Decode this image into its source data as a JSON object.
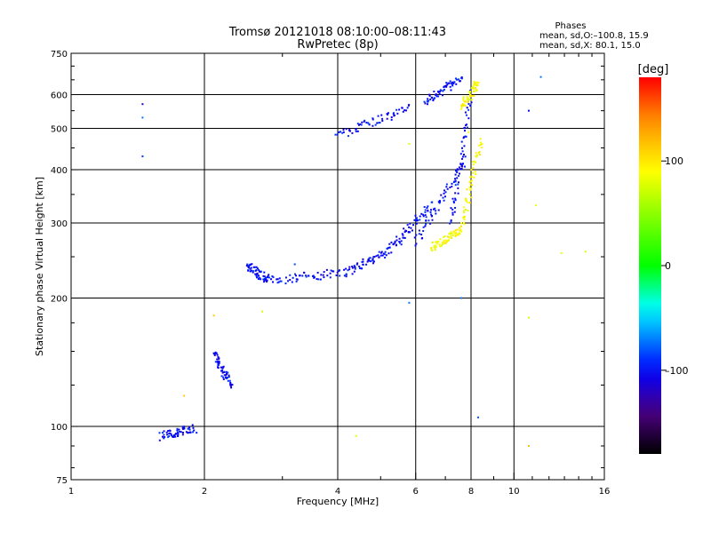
{
  "chart_data": {
    "type": "scatter",
    "title": "Tromsø 20121018 08:10:00–08:11:43",
    "subtitle": "RwPretec (8p)",
    "xlabel": "Frequency [MHz]",
    "ylabel": "Stationary phase Virtual Height [km]",
    "x_scale": "log",
    "y_scale": "log",
    "xlim": [
      1,
      16
    ],
    "ylim": [
      75,
      750
    ],
    "x_ticks": [
      "1",
      "2",
      "4",
      "6",
      "8",
      "10",
      "16"
    ],
    "y_ticks": [
      "75",
      "100",
      "200",
      "300",
      "400",
      "500",
      "600",
      "750"
    ],
    "grid": true,
    "legend": {
      "title": "Phases",
      "line1": "mean, sd,O:–100.8, 15.9",
      "line2": "mean, sd,X:  80.1, 15.0"
    },
    "colorbar": {
      "label": "[deg]",
      "range": [
        -180,
        180
      ],
      "ticks": [
        "100",
        "0",
        "–100"
      ],
      "colors": [
        "#000000",
        "#4b0082",
        "#0000ff",
        "#00ffff",
        "#00ff00",
        "#ffff00",
        "#ff8c00",
        "#ff0000"
      ]
    },
    "series": [
      {
        "mode": "O",
        "phase": -100,
        "segments": [
          {
            "x": [
              1.6,
              1.9
            ],
            "y": [
              95,
              99
            ]
          },
          {
            "x": [
              2.1,
              2.3
            ],
            "y": [
              148,
              125
            ]
          },
          {
            "x": [
              2.5,
              2.8
            ],
            "y": [
              238,
              220
            ]
          },
          {
            "x": [
              2.8,
              4.2
            ],
            "y": [
              220,
              230
            ]
          },
          {
            "x": [
              4.2,
              5.3
            ],
            "y": [
              230,
              262
            ]
          },
          {
            "x": [
              5.3,
              6.5
            ],
            "y": [
              262,
              330
            ]
          },
          {
            "x": [
              6.0,
              7.8
            ],
            "y": [
              270,
              420
            ]
          },
          {
            "x": [
              7.2,
              8.0
            ],
            "y": [
              300,
              600
            ]
          },
          {
            "x": [
              4.0,
              5.8
            ],
            "y": [
              480,
              560
            ]
          },
          {
            "x": [
              6.3,
              7.6
            ],
            "y": [
              580,
              650
            ]
          }
        ],
        "scatter": [
          [
            1.45,
            570
          ],
          [
            1.45,
            530
          ],
          [
            1.45,
            430
          ],
          [
            3.2,
            240
          ],
          [
            5.8,
            195
          ],
          [
            7.6,
            200
          ],
          [
            8.3,
            105
          ],
          [
            10.8,
            550
          ],
          [
            11.5,
            660
          ]
        ]
      },
      {
        "mode": "X",
        "phase": 90,
        "segments": [
          {
            "x": [
              6.5,
              7.6
            ],
            "y": [
              262,
              290
            ]
          },
          {
            "x": [
              7.6,
              8.4
            ],
            "y": [
              290,
              470
            ]
          },
          {
            "x": [
              7.6,
              8.3
            ],
            "y": [
              560,
              640
            ]
          }
        ],
        "scatter": [
          [
            1.8,
            118
          ],
          [
            2.1,
            182
          ],
          [
            2.7,
            186
          ],
          [
            4.4,
            95
          ],
          [
            5.8,
            460
          ],
          [
            10.8,
            180
          ],
          [
            10.8,
            90
          ],
          [
            11.2,
            330
          ],
          [
            12.8,
            255
          ],
          [
            14.5,
            257
          ],
          [
            7.9,
            490
          ]
        ]
      }
    ]
  }
}
